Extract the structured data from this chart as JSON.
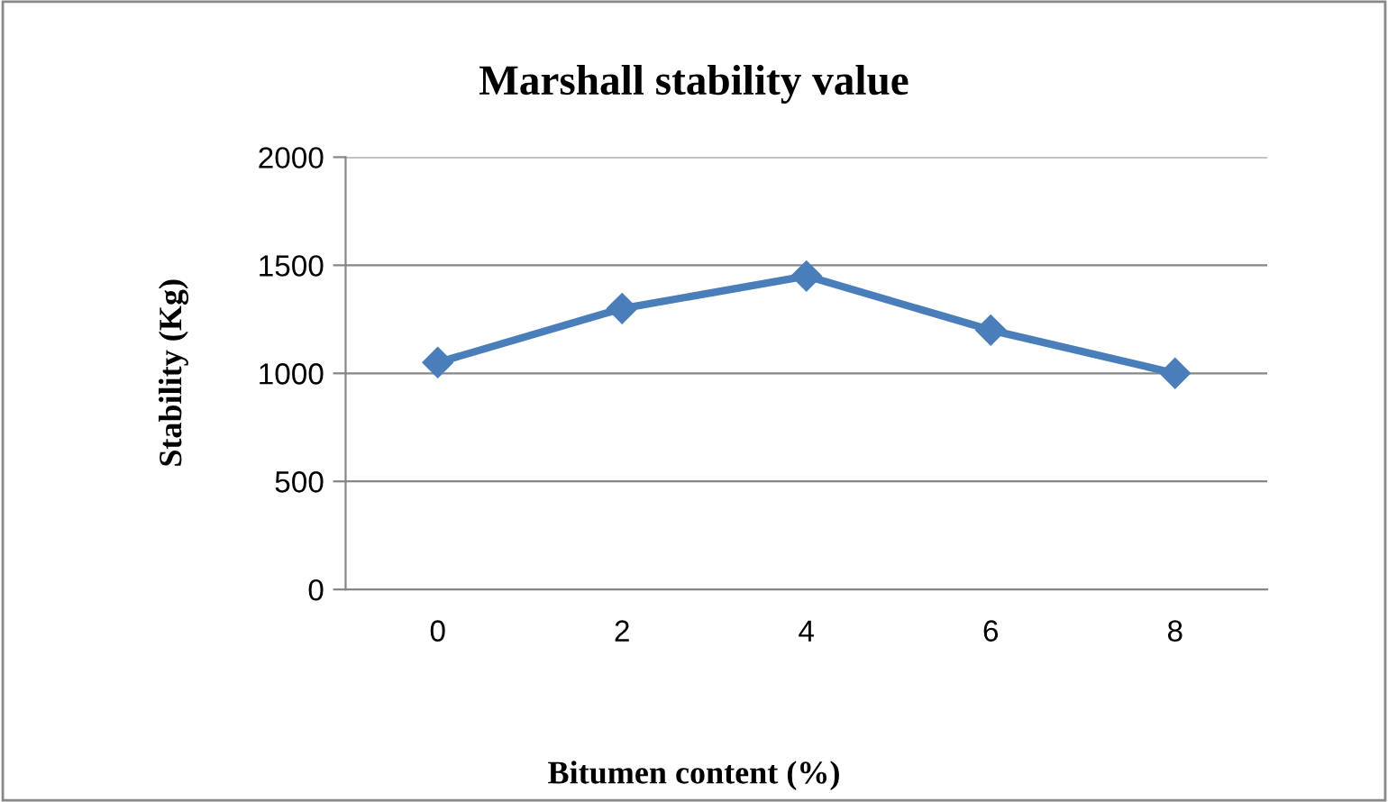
{
  "chart_data": {
    "type": "line",
    "title": "Marshall stability value",
    "xlabel": "Bitumen content (%)",
    "ylabel": "Stability (Kg)",
    "categories": [
      "0",
      "2",
      "4",
      "6",
      "8"
    ],
    "series": [
      {
        "color": "#4a7ebb",
        "values": [
          1050,
          1300,
          1450,
          1200,
          1000
        ]
      }
    ],
    "ylim": [
      0,
      2000
    ],
    "yticks": [
      0,
      500,
      1000,
      1500,
      2000
    ],
    "grid": "y",
    "marker": "diamond",
    "line_style": "solid",
    "legend": false
  }
}
